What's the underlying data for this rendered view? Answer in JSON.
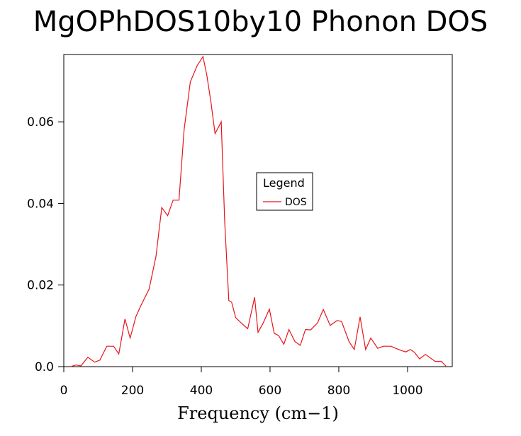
{
  "chart_data": {
    "type": "line",
    "title": "MgOPhDOS10by10 Phonon DOS",
    "xlabel": "Frequency (cm−1)",
    "ylabel": "",
    "xlim": [
      0,
      1130
    ],
    "ylim": [
      0,
      0.0765
    ],
    "xticks": [
      0,
      200,
      400,
      600,
      800,
      1000
    ],
    "xtick_labels": [
      "0",
      "200",
      "400",
      "600",
      "800",
      "1000"
    ],
    "yticks": [
      0.0,
      0.02,
      0.04,
      0.06
    ],
    "ytick_labels": [
      "0.0",
      "0.02",
      "0.04",
      "0.06"
    ],
    "grid": false,
    "legend": {
      "title": "Legend",
      "placement": "center-right"
    },
    "series": [
      {
        "name": "DOS",
        "color": "#e8141c",
        "x": [
          20,
          35,
          50,
          70,
          90,
          105,
          125,
          145,
          160,
          178,
          193,
          210,
          225,
          248,
          268,
          285,
          302,
          318,
          335,
          350,
          368,
          388,
          405,
          416,
          428,
          440,
          458,
          468,
          480,
          488,
          500,
          520,
          535,
          555,
          565,
          580,
          598,
          612,
          625,
          640,
          655,
          672,
          688,
          703,
          718,
          738,
          755,
          775,
          795,
          808,
          830,
          845,
          862,
          878,
          893,
          913,
          930,
          952,
          965,
          980,
          995,
          1008,
          1020,
          1035,
          1052,
          1065,
          1080,
          1098,
          1113
        ],
        "y": [
          0.0,
          0.0004,
          0.0002,
          0.0023,
          0.0011,
          0.0016,
          0.005,
          0.005,
          0.0031,
          0.0117,
          0.007,
          0.0123,
          0.0151,
          0.019,
          0.027,
          0.039,
          0.037,
          0.0408,
          0.0408,
          0.058,
          0.0698,
          0.0738,
          0.076,
          0.0715,
          0.0648,
          0.0571,
          0.06,
          0.0355,
          0.0162,
          0.0158,
          0.012,
          0.0104,
          0.0093,
          0.017,
          0.0084,
          0.0107,
          0.0141,
          0.0082,
          0.0076,
          0.0055,
          0.0091,
          0.0062,
          0.0052,
          0.0091,
          0.009,
          0.0107,
          0.014,
          0.0101,
          0.0113,
          0.0111,
          0.0061,
          0.0042,
          0.0122,
          0.0042,
          0.007,
          0.0045,
          0.005,
          0.005,
          0.0045,
          0.004,
          0.0036,
          0.0042,
          0.0035,
          0.0019,
          0.003,
          0.0022,
          0.0013,
          0.0013,
          0.0
        ]
      }
    ]
  }
}
